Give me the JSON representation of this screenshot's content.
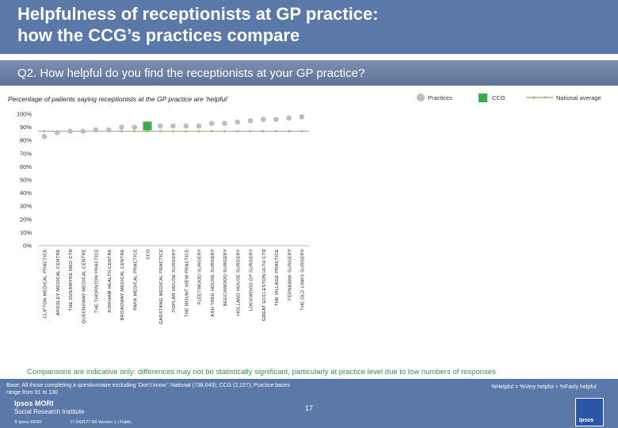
{
  "header": {
    "title_line1": "Helpfulness of receptionists at GP practice:",
    "title_line2": "how the CCG’s practices compare"
  },
  "question": "Q2. How helpful do you find the receptionists at your GP practice?",
  "subtitle": "Percentage of patients saying receptionists at the GP practice are ‘helpful’",
  "legend": {
    "practices": "Practices",
    "ccg": "CCG",
    "national": "National average"
  },
  "colors": {
    "practice": "#b9bdc4",
    "ccg": "#3aaa4e",
    "national": "#a6b38c",
    "header": "#5a78a8"
  },
  "chart_data": {
    "type": "scatter",
    "ylim": [
      0,
      100
    ],
    "y_ticks": [
      "0%",
      "10%",
      "20%",
      "30%",
      "40%",
      "50%",
      "60%",
      "70%",
      "80%",
      "90%",
      "100%"
    ],
    "categories": [
      "CLIFTON MEDICAL PRACTICE",
      "ARDSLEY MEDICAL CENTRE",
      "THE OVERMYRE MED CTR",
      "QUEENSWAY MEDICAL CENTRE",
      "THE THORNTON PRACTICE",
      "KIRKHAM HEALTH CENTRE",
      "BROADWAY MEDICAL CENTRE",
      "PARK MEDICAL PRACTICE",
      "CCG",
      "GARSTANG MEDICAL PRACTICE",
      "POPLAR HOUSE SURGERY",
      "THE MOUNT VIEW PRACTICE",
      "FLEETWOOD SURGERY",
      "ASH TREE HOUSE SURGERY",
      "BEECHWOOD SURGERY",
      "HOLLAND HOUSE SURGERY",
      "LOCKWOOD GP SURGERY",
      "GREAT ECCLESTON HLTH CTR",
      "THE VILLAGE PRACTICE",
      "FERNBANK SURGERY",
      "THE OLD LINKS SURGERY"
    ],
    "values": [
      83,
      86,
      87,
      87,
      88,
      88,
      90,
      90,
      91,
      91,
      91,
      91,
      91,
      93,
      93,
      94,
      95,
      96,
      96,
      97,
      98
    ],
    "ccg_index": 8,
    "national_average": 87
  },
  "comparisons_note": "Comparisons are indicative only: differences may not be statistically significant, particularly at practice level due to low numbers of responses",
  "footer": {
    "base": "Base: All those completing a questionnaire excluding ‘Don’t know’: National (738,643); CCG (2,157); Practice bases range from 91 to 130",
    "help_note": "%Helpful = %Very helpful + %Fairly helpful",
    "page_number": "17",
    "logo_line1": "Ipsos MORI",
    "logo_line2": "Social Research Institute",
    "copyright": "© Ipsos MORI",
    "reference": "17-043177-06 Version 1 | Public",
    "brand": "Ipsos"
  }
}
